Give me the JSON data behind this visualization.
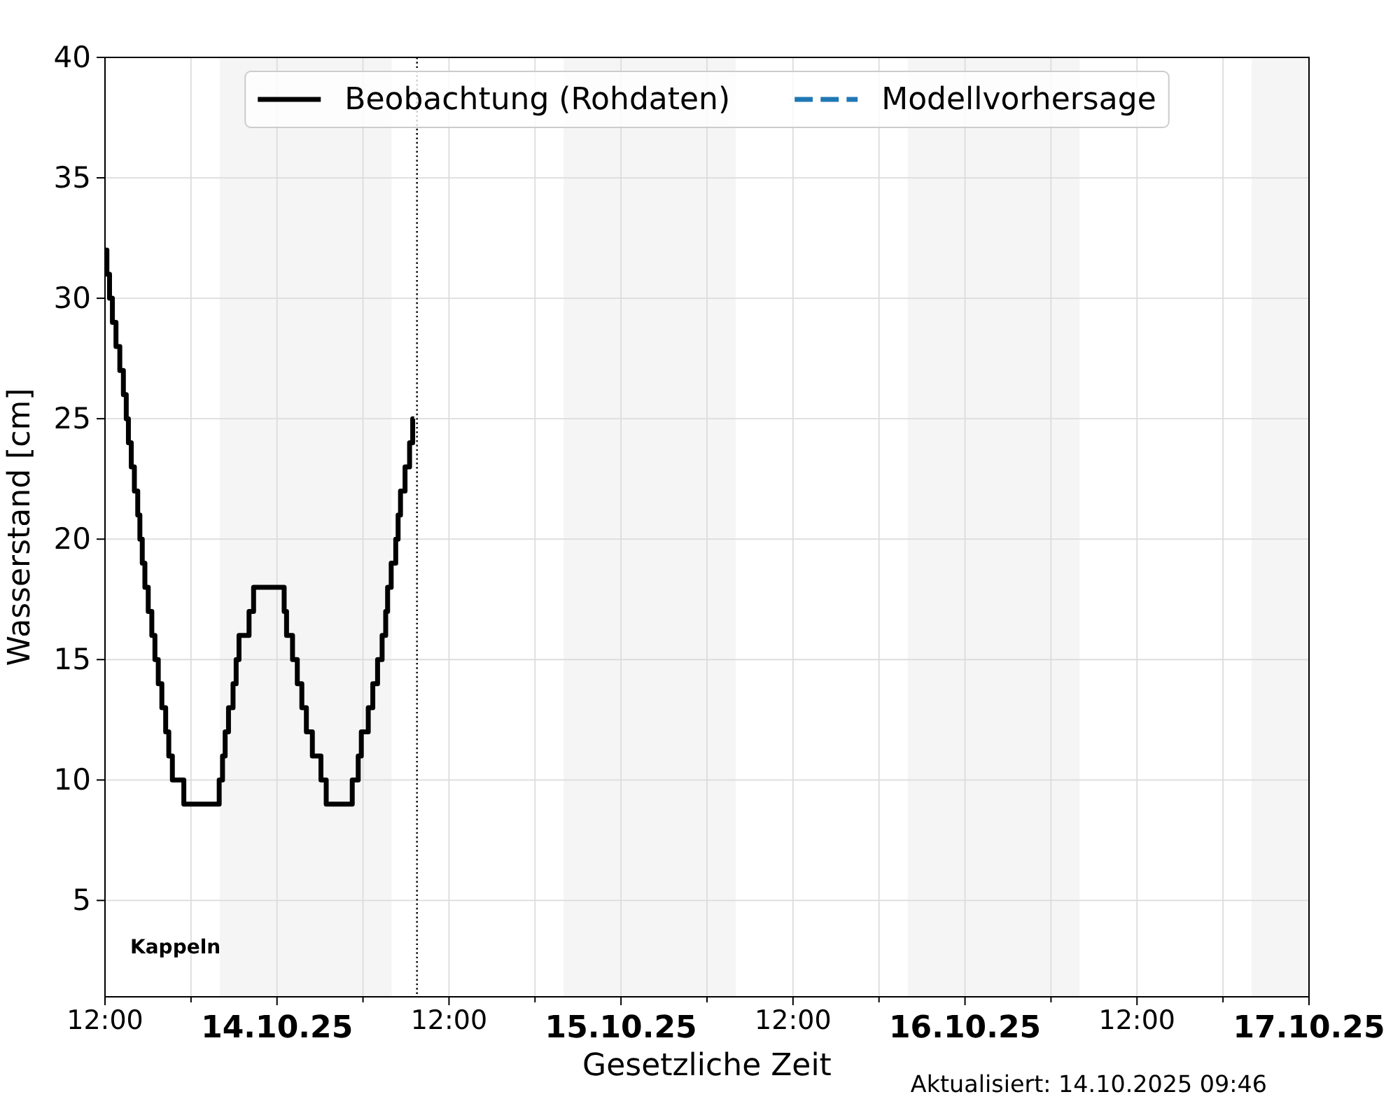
{
  "chart_data": {
    "type": "step",
    "xlabel": "Gesetzliche Zeit",
    "ylabel": "Wasserstand [cm]",
    "xlim": [
      "2025-10-13T12:00",
      "2025-10-17"
    ],
    "xticks": [
      {
        "value": "2025-10-13T12:00",
        "label": "12:00"
      },
      {
        "value": "2025-10-13T18:00",
        "label": null
      },
      {
        "value": "2025-10-14",
        "label": "14.10.25"
      },
      {
        "value": "2025-10-14T06:00",
        "label": null
      },
      {
        "value": "2025-10-14T12:00",
        "label": "12:00"
      },
      {
        "value": "2025-10-14T18:00",
        "label": null
      },
      {
        "value": "2025-10-15",
        "label": "15.10.25"
      },
      {
        "value": "2025-10-15T06:00",
        "label": null
      },
      {
        "value": "2025-10-15T12:00",
        "label": "12:00"
      },
      {
        "value": "2025-10-15T18:00",
        "label": null
      },
      {
        "value": "2025-10-16",
        "label": "16.10.25"
      },
      {
        "value": "2025-10-16T06:00",
        "label": null
      },
      {
        "value": "2025-10-16T12:00",
        "label": "12:00"
      },
      {
        "value": "2025-10-16T18:00",
        "label": null
      },
      {
        "value": "2025-10-17",
        "label": "17.10.25"
      }
    ],
    "ylim": [
      1,
      40
    ],
    "yticks": [
      5,
      10,
      15,
      20,
      25,
      30,
      35,
      40
    ],
    "grid": true,
    "legend": "top",
    "series": [
      {
        "name": "Beobachtung (Rohdaten)",
        "color": "#000000",
        "line_style": "solid",
        "x": [
          "2025-10-13T12:00",
          "2025-10-13T12:08",
          "2025-10-13T12:19",
          "2025-10-13T12:31",
          "2025-10-13T12:46",
          "2025-10-13T13:02",
          "2025-10-13T13:17",
          "2025-10-13T13:29",
          "2025-10-13T13:38",
          "2025-10-13T13:50",
          "2025-10-13T14:03",
          "2025-10-13T14:17",
          "2025-10-13T14:26",
          "2025-10-13T14:36",
          "2025-10-13T14:47",
          "2025-10-13T15:01",
          "2025-10-13T15:16",
          "2025-10-13T15:29",
          "2025-10-13T15:43",
          "2025-10-13T15:58",
          "2025-10-13T16:14",
          "2025-10-13T16:27",
          "2025-10-13T16:42",
          "2025-10-13T17:30",
          "2025-10-13T19:58",
          "2025-10-13T20:12",
          "2025-10-13T20:23",
          "2025-10-13T20:37",
          "2025-10-13T20:56",
          "2025-10-13T21:09",
          "2025-10-13T21:21",
          "2025-10-13T22:03",
          "2025-10-13T22:22",
          "2025-10-14T00:30",
          "2025-10-14T00:40",
          "2025-10-14T01:05",
          "2025-10-14T01:25",
          "2025-10-14T01:44",
          "2025-10-14T02:03",
          "2025-10-14T02:28",
          "2025-10-14T03:04",
          "2025-10-14T03:26",
          "2025-10-14T05:15",
          "2025-10-14T05:40",
          "2025-10-14T05:53",
          "2025-10-14T06:22",
          "2025-10-14T06:41",
          "2025-10-14T07:01",
          "2025-10-14T07:20",
          "2025-10-14T07:35",
          "2025-10-14T07:43",
          "2025-10-14T07:58",
          "2025-10-14T08:17",
          "2025-10-14T08:27",
          "2025-10-14T08:37",
          "2025-10-14T08:56",
          "2025-10-14T09:15",
          "2025-10-14T09:28",
          "2025-10-14T09:34"
        ],
        "values": [
          32,
          31,
          30,
          29,
          28,
          27,
          26,
          25,
          24,
          23,
          22,
          21,
          20,
          19,
          18,
          17,
          16,
          15,
          14,
          13,
          12,
          11,
          10,
          9,
          10,
          11,
          12,
          13,
          14,
          15,
          16,
          17,
          18,
          17,
          16,
          15,
          14,
          13,
          12,
          11,
          10,
          9,
          10,
          11,
          12,
          13,
          14,
          15,
          16,
          17,
          18,
          19,
          20,
          21,
          22,
          23,
          24,
          25,
          25
        ]
      },
      {
        "name": "Modellvorhersage",
        "color": "#1f77b4",
        "line_style": "dashed"
      }
    ],
    "bands": [
      {
        "axis": "x",
        "from": "2025-10-13T20:00",
        "to": "2025-10-14T08:00",
        "color": "#f5f5f5"
      },
      {
        "axis": "x",
        "from": "2025-10-14T20:00",
        "to": "2025-10-15T08:00",
        "color": "#f5f5f5"
      },
      {
        "axis": "x",
        "from": "2025-10-15T20:00",
        "to": "2025-10-16T08:00",
        "color": "#f5f5f5"
      },
      {
        "axis": "x",
        "from": "2025-10-16T20:00",
        "to": "2025-10-17",
        "color": "#f5f5f5"
      }
    ],
    "ref_lines": [
      {
        "axis": "x",
        "value": "2025-10-14T09:46",
        "color": "#000000",
        "line_style": "dotted"
      }
    ],
    "annotations": [
      "Kappeln",
      "Aktualisiert: 14.10.2025 09:46"
    ]
  }
}
